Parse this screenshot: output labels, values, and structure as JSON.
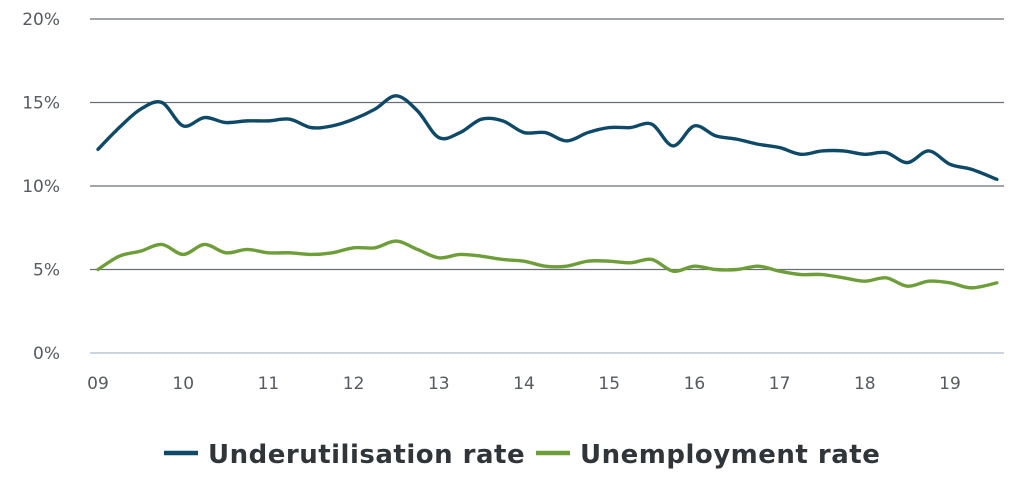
{
  "chart_data": {
    "type": "line",
    "title": "",
    "xlabel": "",
    "ylabel": "",
    "x_ticks": [
      "09",
      "10",
      "11",
      "12",
      "13",
      "14",
      "15",
      "16",
      "17",
      "18",
      "19"
    ],
    "y_ticks": [
      "0%",
      "5%",
      "10%",
      "15%",
      "20%"
    ],
    "xlim": [
      2009,
      2019.6
    ],
    "ylim": [
      0,
      20
    ],
    "grid": true,
    "legend_position": "bottom-center",
    "series": [
      {
        "name": "Underutilisation rate",
        "color": "#0e4a68",
        "points": [
          [
            2009.0,
            12.2
          ],
          [
            2009.25,
            13.5
          ],
          [
            2009.5,
            14.6
          ],
          [
            2009.75,
            15.0
          ],
          [
            2010.0,
            13.6
          ],
          [
            2010.25,
            14.1
          ],
          [
            2010.5,
            13.8
          ],
          [
            2010.75,
            13.9
          ],
          [
            2011.0,
            13.9
          ],
          [
            2011.25,
            14.0
          ],
          [
            2011.5,
            13.5
          ],
          [
            2011.75,
            13.6
          ],
          [
            2012.0,
            14.0
          ],
          [
            2012.25,
            14.6
          ],
          [
            2012.5,
            15.4
          ],
          [
            2012.75,
            14.5
          ],
          [
            2013.0,
            12.9
          ],
          [
            2013.25,
            13.2
          ],
          [
            2013.5,
            14.0
          ],
          [
            2013.75,
            13.9
          ],
          [
            2014.0,
            13.2
          ],
          [
            2014.25,
            13.2
          ],
          [
            2014.5,
            12.7
          ],
          [
            2014.75,
            13.2
          ],
          [
            2015.0,
            13.5
          ],
          [
            2015.25,
            13.5
          ],
          [
            2015.5,
            13.7
          ],
          [
            2015.75,
            12.4
          ],
          [
            2016.0,
            13.6
          ],
          [
            2016.25,
            13.0
          ],
          [
            2016.5,
            12.8
          ],
          [
            2016.75,
            12.5
          ],
          [
            2017.0,
            12.3
          ],
          [
            2017.25,
            11.9
          ],
          [
            2017.5,
            12.1
          ],
          [
            2017.75,
            12.1
          ],
          [
            2018.0,
            11.9
          ],
          [
            2018.25,
            12.0
          ],
          [
            2018.5,
            11.4
          ],
          [
            2018.75,
            12.1
          ],
          [
            2019.0,
            11.3
          ],
          [
            2019.25,
            11.0
          ],
          [
            2019.55,
            10.4
          ]
        ]
      },
      {
        "name": "Unemployment rate",
        "color": "#6e9e3a",
        "points": [
          [
            2009.0,
            5.0
          ],
          [
            2009.25,
            5.8
          ],
          [
            2009.5,
            6.1
          ],
          [
            2009.75,
            6.5
          ],
          [
            2010.0,
            5.9
          ],
          [
            2010.25,
            6.5
          ],
          [
            2010.5,
            6.0
          ],
          [
            2010.75,
            6.2
          ],
          [
            2011.0,
            6.0
          ],
          [
            2011.25,
            6.0
          ],
          [
            2011.5,
            5.9
          ],
          [
            2011.75,
            6.0
          ],
          [
            2012.0,
            6.3
          ],
          [
            2012.25,
            6.3
          ],
          [
            2012.5,
            6.7
          ],
          [
            2012.75,
            6.2
          ],
          [
            2013.0,
            5.7
          ],
          [
            2013.25,
            5.9
          ],
          [
            2013.5,
            5.8
          ],
          [
            2013.75,
            5.6
          ],
          [
            2014.0,
            5.5
          ],
          [
            2014.25,
            5.2
          ],
          [
            2014.5,
            5.2
          ],
          [
            2014.75,
            5.5
          ],
          [
            2015.0,
            5.5
          ],
          [
            2015.25,
            5.4
          ],
          [
            2015.5,
            5.6
          ],
          [
            2015.75,
            4.9
          ],
          [
            2016.0,
            5.2
          ],
          [
            2016.25,
            5.0
          ],
          [
            2016.5,
            5.0
          ],
          [
            2016.75,
            5.2
          ],
          [
            2017.0,
            4.9
          ],
          [
            2017.25,
            4.7
          ],
          [
            2017.5,
            4.7
          ],
          [
            2017.75,
            4.5
          ],
          [
            2018.0,
            4.3
          ],
          [
            2018.25,
            4.5
          ],
          [
            2018.5,
            4.0
          ],
          [
            2018.75,
            4.3
          ],
          [
            2019.0,
            4.2
          ],
          [
            2019.25,
            3.9
          ],
          [
            2019.55,
            4.2
          ]
        ]
      }
    ]
  }
}
